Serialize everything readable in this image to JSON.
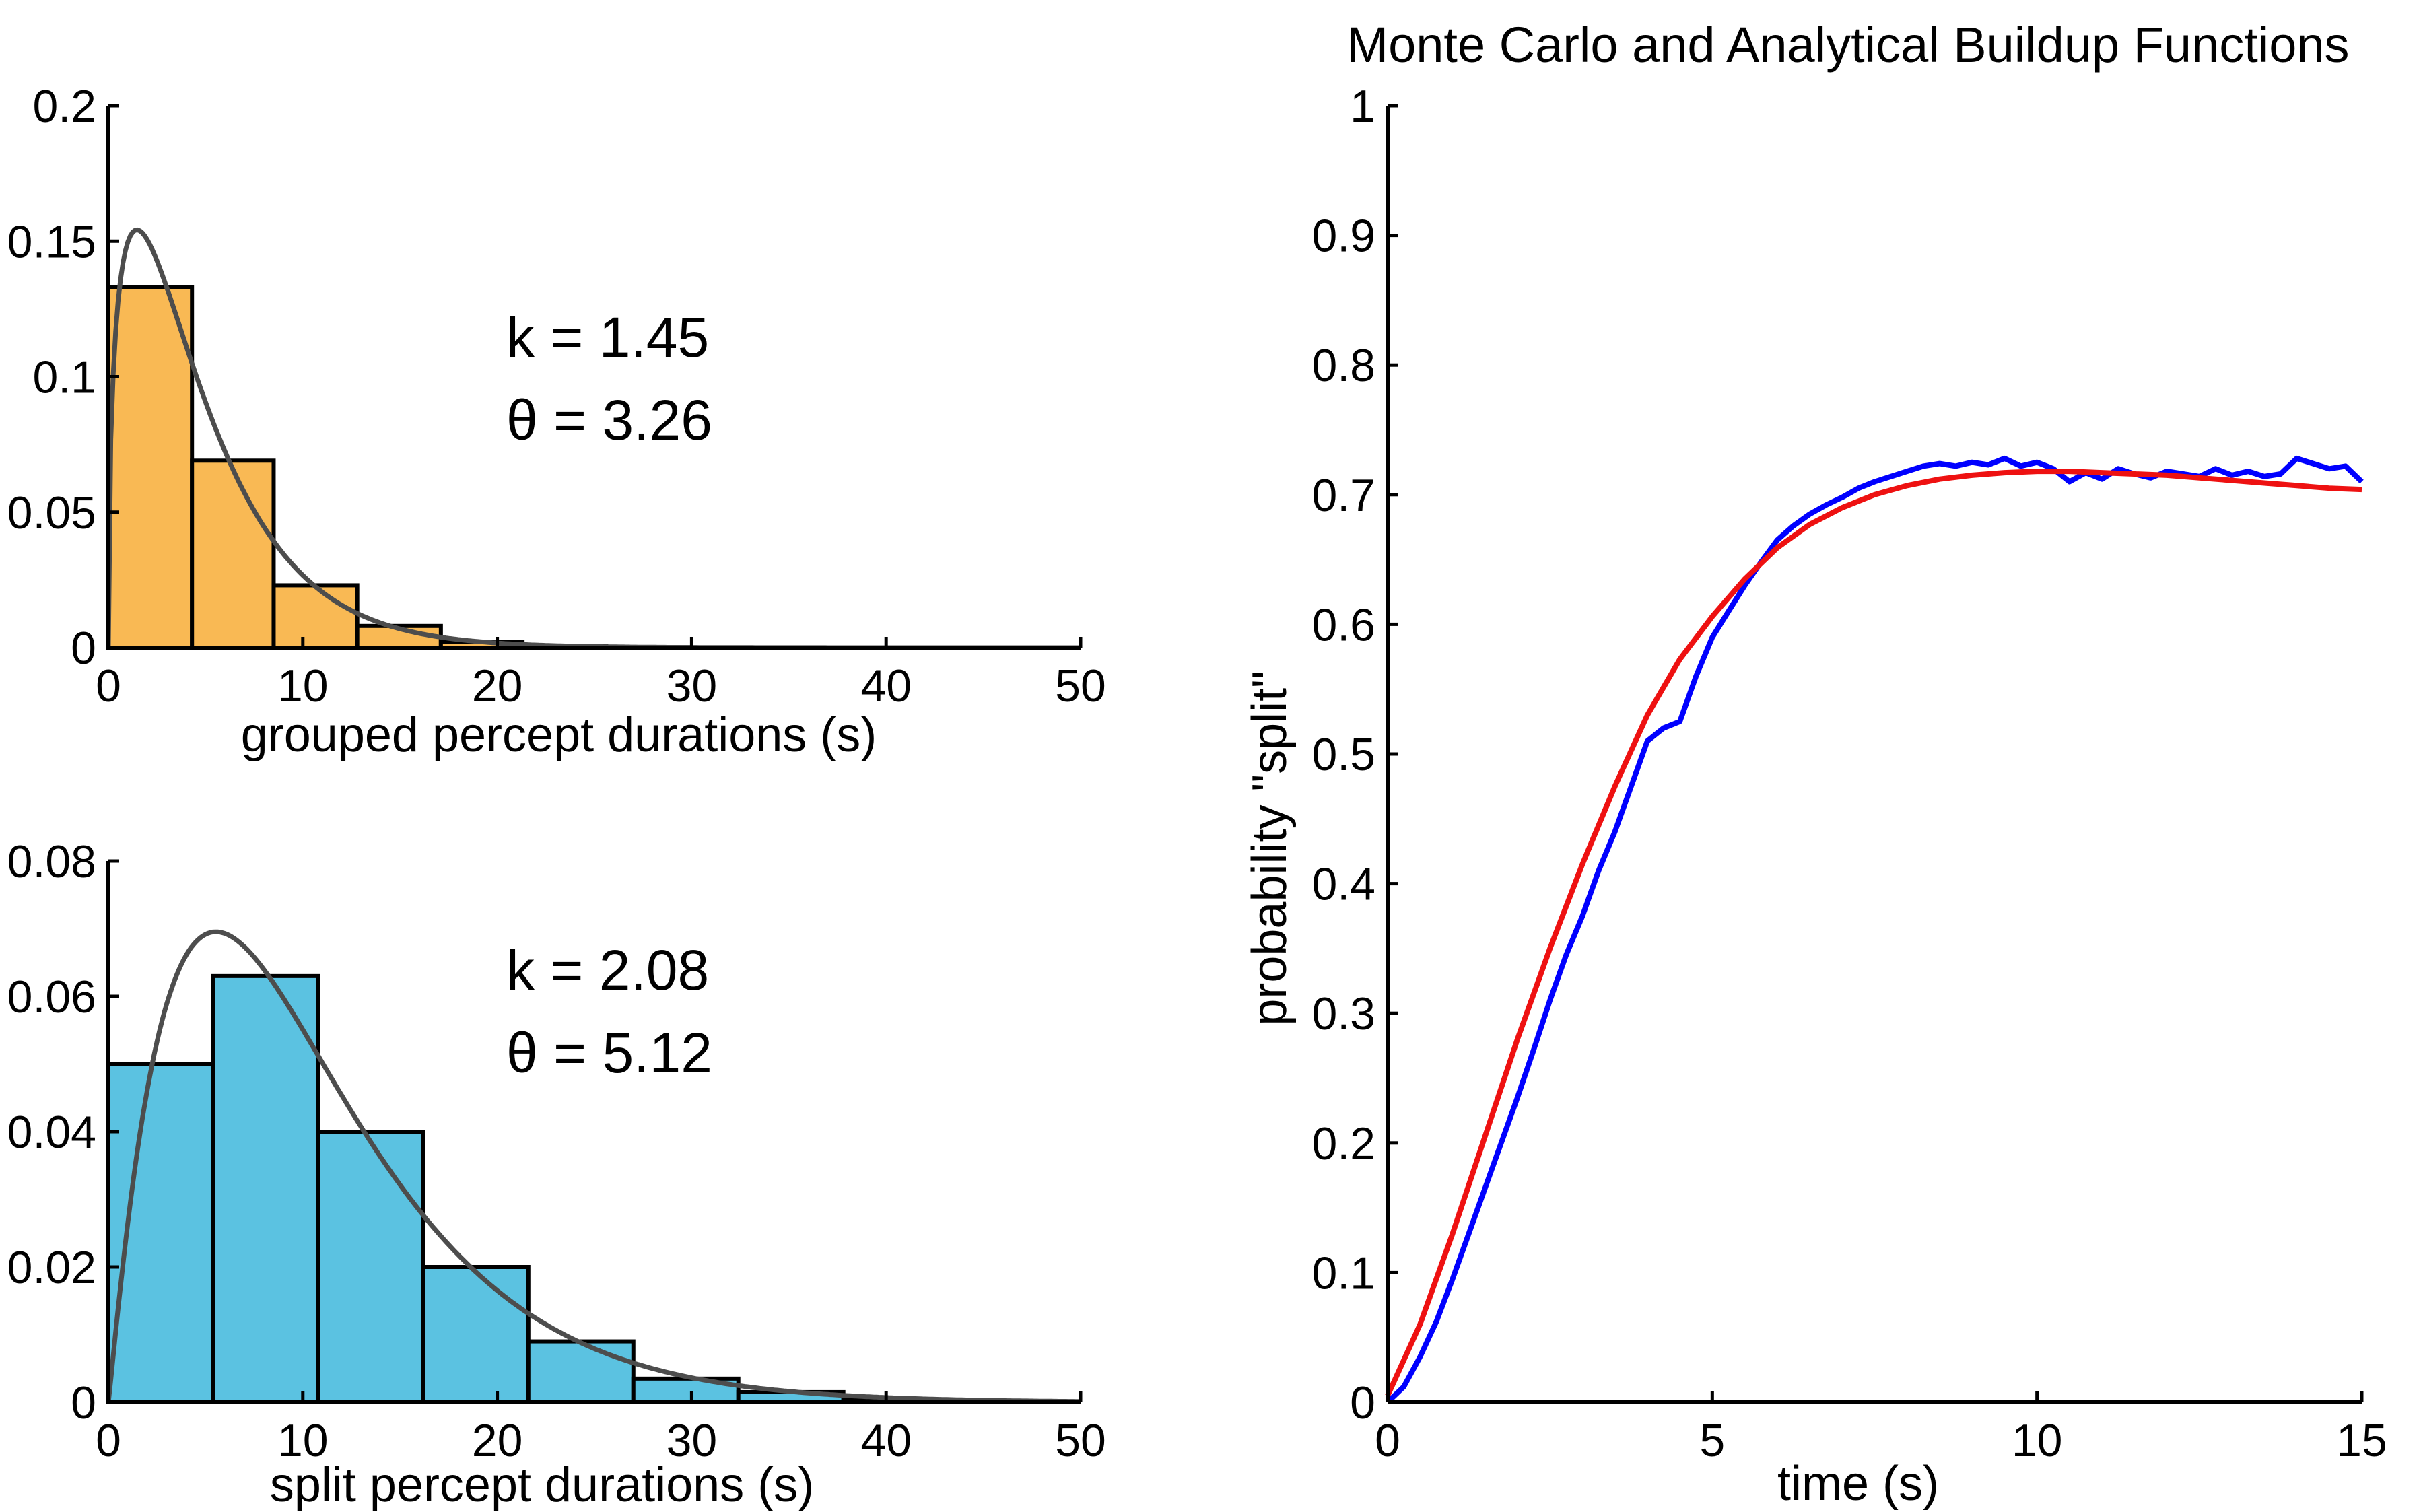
{
  "chart_data": [
    {
      "type": "bar",
      "id": "grouped",
      "xlabel": "grouped percept durations (s)",
      "ylabel": "",
      "xlim": [
        0,
        50
      ],
      "ylim": [
        0,
        0.2
      ],
      "xticks": [
        "0",
        "10",
        "20",
        "30",
        "40",
        "50"
      ],
      "yticks": [
        "0",
        "0.05",
        "0.1",
        "0.15",
        "0.2"
      ],
      "bin_edges": [
        0,
        4.3,
        8.5,
        12.8,
        17.1,
        21.3,
        25.6,
        29.9,
        34.2,
        38.4,
        42.7,
        47
      ],
      "values": [
        0.133,
        0.069,
        0.023,
        0.008,
        0.002,
        0.0006,
        0.0002,
        0.0001,
        0.0,
        0.0,
        0.0
      ],
      "bar_color": "#f9b954",
      "fit_color": "#4d4d4d",
      "fit": {
        "k": 1.45,
        "theta": 3.26
      },
      "annotations": [
        "k = 1.45",
        "θ = 3.26"
      ]
    },
    {
      "type": "bar",
      "id": "split",
      "xlabel": "split percept durations (s)",
      "ylabel": "",
      "xlim": [
        0,
        50
      ],
      "ylim": [
        0,
        0.08
      ],
      "xticks": [
        "0",
        "10",
        "20",
        "30",
        "40",
        "50"
      ],
      "yticks": [
        "0",
        "0.02",
        "0.04",
        "0.06",
        "0.08"
      ],
      "bin_edges": [
        0,
        5.4,
        10.8,
        16.2,
        21.6,
        27,
        32.4,
        37.8,
        43.2
      ],
      "values": [
        0.05,
        0.063,
        0.04,
        0.02,
        0.009,
        0.0035,
        0.0015,
        0.0004
      ],
      "bar_color": "#5bc2e1",
      "fit_color": "#4d4d4d",
      "fit": {
        "k": 2.08,
        "theta": 5.12
      },
      "annotations": [
        "k = 2.08",
        "θ = 5.12"
      ]
    },
    {
      "type": "line",
      "id": "buildup",
      "title": "Monte Carlo and Analytical Buildup Functions",
      "xlabel": "time (s)",
      "ylabel": "probability \"split\"",
      "xlim": [
        0,
        15
      ],
      "ylim": [
        0,
        1
      ],
      "xticks": [
        "0",
        "5",
        "10",
        "15"
      ],
      "yticks": [
        "0",
        "0.1",
        "0.2",
        "0.3",
        "0.4",
        "0.5",
        "0.6",
        "0.7",
        "0.8",
        "0.9",
        "1"
      ],
      "series": [
        {
          "color": "#0000ff",
          "x": [
            0,
            0.25,
            0.5,
            0.75,
            1,
            1.25,
            1.5,
            1.75,
            2,
            2.25,
            2.5,
            2.75,
            3,
            3.25,
            3.5,
            3.75,
            4,
            4.25,
            4.5,
            4.75,
            5,
            5.25,
            5.5,
            5.75,
            6,
            6.25,
            6.5,
            6.75,
            7,
            7.25,
            7.5,
            7.75,
            8,
            8.25,
            8.5,
            8.75,
            9,
            9.25,
            9.5,
            9.75,
            10,
            10.25,
            10.5,
            10.75,
            11,
            11.25,
            11.5,
            11.75,
            12,
            12.25,
            12.5,
            12.75,
            13,
            13.25,
            13.5,
            13.75,
            14,
            14.25,
            14.5,
            14.75,
            15
          ],
          "y": [
            0.0,
            0.012,
            0.035,
            0.062,
            0.095,
            0.13,
            0.165,
            0.2,
            0.235,
            0.272,
            0.31,
            0.345,
            0.375,
            0.41,
            0.44,
            0.475,
            0.51,
            0.52,
            0.525,
            0.56,
            0.59,
            0.61,
            0.63,
            0.648,
            0.665,
            0.676,
            0.685,
            0.692,
            0.698,
            0.705,
            0.71,
            0.714,
            0.718,
            0.722,
            0.724,
            0.722,
            0.725,
            0.723,
            0.728,
            0.722,
            0.725,
            0.72,
            0.71,
            0.717,
            0.712,
            0.72,
            0.716,
            0.713,
            0.718,
            0.716,
            0.714,
            0.72,
            0.715,
            0.718,
            0.714,
            0.716,
            0.728,
            0.724,
            0.72,
            0.722,
            0.71
          ]
        },
        {
          "color": "#ee1111",
          "x": [
            0,
            0.5,
            1,
            1.5,
            2,
            2.5,
            3,
            3.5,
            4,
            4.5,
            5,
            5.5,
            6,
            6.5,
            7,
            7.5,
            8,
            8.5,
            9,
            9.5,
            10,
            10.5,
            11,
            11.5,
            12,
            12.5,
            13,
            13.5,
            14,
            14.5,
            15
          ],
          "y": [
            0.005,
            0.06,
            0.13,
            0.205,
            0.28,
            0.35,
            0.415,
            0.475,
            0.53,
            0.573,
            0.606,
            0.635,
            0.659,
            0.677,
            0.69,
            0.7,
            0.707,
            0.712,
            0.715,
            0.717,
            0.718,
            0.718,
            0.717,
            0.716,
            0.715,
            0.713,
            0.711,
            0.709,
            0.707,
            0.705,
            0.704
          ]
        }
      ]
    }
  ]
}
